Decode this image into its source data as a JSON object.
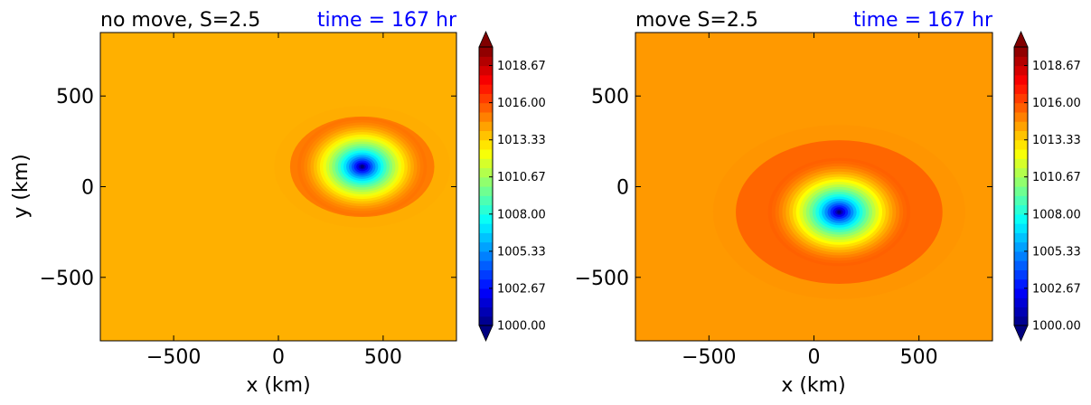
{
  "chart_data": [
    {
      "type": "heatmap",
      "title": "no move, S=2.5",
      "time_label": "time = 167 hr",
      "xlabel": "x (km)",
      "ylabel": "y (km)",
      "xlim": [
        -850,
        850
      ],
      "ylim": [
        -850,
        850
      ],
      "xticks": [
        {
          "value": -500,
          "label": "−500"
        },
        {
          "value": 0,
          "label": "0"
        },
        {
          "value": 500,
          "label": "500"
        }
      ],
      "yticks": [
        {
          "value": -500,
          "label": "−500"
        },
        {
          "value": 0,
          "label": "0"
        },
        {
          "value": 500,
          "label": "500"
        }
      ],
      "field": {
        "center_km": [
          400,
          110
        ],
        "min_pressure": 1000.0,
        "ambient_pressure": 1015.2,
        "inner_radius_km": 60,
        "outer_radius_km": 300,
        "ring_radius_km": 420,
        "ring_pressure": 1014.1
      },
      "colorbar": {
        "min": 1000.0,
        "max": 1020.0,
        "ticks": [
          "1000.00",
          "1002.67",
          "1005.33",
          "1008.00",
          "1010.67",
          "1013.33",
          "1016.00",
          "1018.67"
        ],
        "tick_values": [
          1000.0,
          1002.67,
          1005.33,
          1008.0,
          1010.67,
          1013.33,
          1016.0,
          1018.67
        ],
        "extend": "both"
      }
    },
    {
      "type": "heatmap",
      "title": "move S=2.5",
      "time_label": "time = 167 hr",
      "xlabel": "x (km)",
      "ylabel": "",
      "xlim": [
        -850,
        850
      ],
      "ylim": [
        -850,
        850
      ],
      "xticks": [
        {
          "value": -500,
          "label": "−500"
        },
        {
          "value": 0,
          "label": "0"
        },
        {
          "value": 500,
          "label": "500"
        }
      ],
      "yticks": [
        {
          "value": -500,
          "label": "−500"
        },
        {
          "value": 0,
          "label": "0"
        },
        {
          "value": 500,
          "label": "500"
        }
      ],
      "field": {
        "center_km": [
          120,
          -140
        ],
        "min_pressure": 1000.0,
        "ambient_pressure": 1015.6,
        "inner_radius_km": 60,
        "outer_radius_km": 330,
        "ring_radius_km": 600,
        "ring_pressure": 1014.6
      },
      "colorbar": {
        "min": 1000.0,
        "max": 1020.0,
        "ticks": [
          "1000.00",
          "1002.67",
          "1005.33",
          "1008.00",
          "1010.67",
          "1013.33",
          "1016.00",
          "1018.67"
        ],
        "tick_values": [
          1000.0,
          1002.67,
          1005.33,
          1008.0,
          1010.67,
          1013.33,
          1016.0,
          1018.67
        ],
        "extend": "both"
      }
    }
  ],
  "colors": {
    "title_text": "#000000",
    "time_text": "#0000ff"
  }
}
